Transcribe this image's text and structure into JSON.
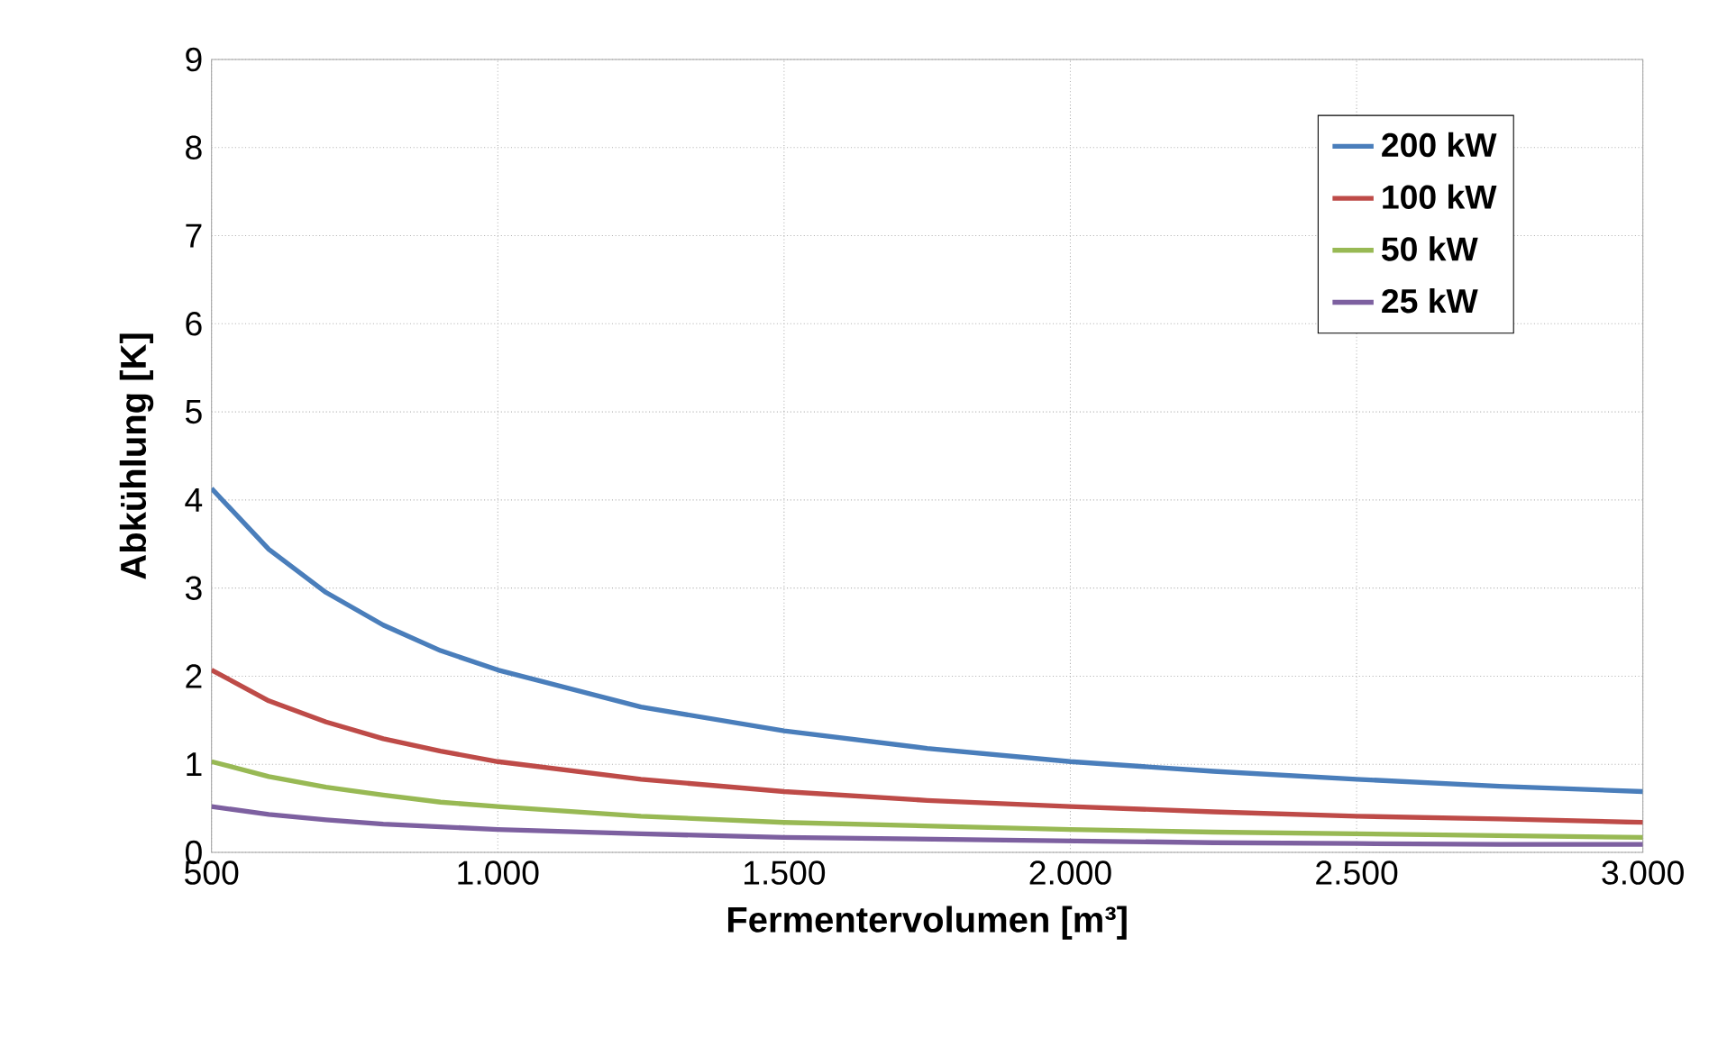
{
  "chart_data": {
    "type": "line",
    "xlabel": "Fermentervolumen [m³]",
    "ylabel": "Abkühlung [K]",
    "x": [
      500,
      600,
      700,
      800,
      900,
      1000,
      1250,
      1500,
      1750,
      2000,
      2250,
      2500,
      2750,
      3000
    ],
    "series": [
      {
        "name": "200 kW",
        "color": "#4a7ebb",
        "values": [
          4.13,
          3.44,
          2.95,
          2.58,
          2.29,
          2.07,
          1.65,
          1.38,
          1.18,
          1.03,
          0.92,
          0.83,
          0.75,
          0.69
        ]
      },
      {
        "name": "100 kW",
        "color": "#be4b48",
        "values": [
          2.07,
          1.72,
          1.48,
          1.29,
          1.15,
          1.03,
          0.83,
          0.69,
          0.59,
          0.52,
          0.46,
          0.41,
          0.38,
          0.34
        ]
      },
      {
        "name": "50 kW",
        "color": "#98b954",
        "values": [
          1.03,
          0.86,
          0.74,
          0.65,
          0.57,
          0.52,
          0.41,
          0.34,
          0.3,
          0.26,
          0.23,
          0.21,
          0.19,
          0.17
        ]
      },
      {
        "name": "25 kW",
        "color": "#7d60a0",
        "values": [
          0.52,
          0.43,
          0.37,
          0.32,
          0.29,
          0.26,
          0.21,
          0.17,
          0.15,
          0.13,
          0.11,
          0.1,
          0.09,
          0.09
        ]
      }
    ],
    "xlim": [
      500,
      3000
    ],
    "ylim": [
      0,
      9
    ],
    "xticks": [
      500,
      {
        "value": 1000,
        "label": "1.000"
      },
      {
        "value": 1500,
        "label": "1.500"
      },
      {
        "value": 2000,
        "label": "2.000"
      },
      {
        "value": 2500,
        "label": "2.500"
      },
      {
        "value": 3000,
        "label": "3.000"
      }
    ],
    "yticks": [
      0,
      1,
      2,
      3,
      4,
      5,
      6,
      7,
      8,
      9
    ],
    "grid": true,
    "legend": "top right",
    "marker": "none",
    "line_style": "solid"
  }
}
